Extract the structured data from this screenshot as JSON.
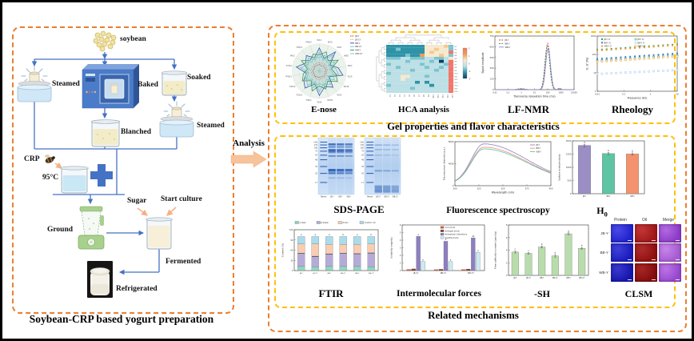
{
  "left_panel": {
    "title": "Soybean-CRP based yogurt preparation",
    "labels": {
      "soybean": "soybean",
      "steamed_left": "Steamed",
      "baked": "Baked",
      "soaked": "Soaked",
      "steamed_right": "Steamed",
      "blanched": "Blanched",
      "crp": "CRP",
      "temperature": "95°C",
      "ground": "Ground",
      "sugar": "Sugar",
      "start_culture": "Start culture",
      "fermented": "Fermented",
      "refrigerated": "Refrigerated"
    }
  },
  "analysis_arrow_label": "Analysis",
  "right_panel": {
    "top_box_title": "Gel properties and flavor characteristics",
    "bottom_box_title": "Related mechanisms",
    "panel_titles": {
      "enose": "E-nose",
      "hca": "HCA analysis",
      "lfnmr": "LF-NMR",
      "rheology": "Rheology",
      "sds": "SDS-PAGE",
      "fluorescence": "Fluorescence spectroscopy",
      "h0_main": "H",
      "h0_sub": "0",
      "ftir": "FTIR",
      "forces": "Intermolecular forces",
      "sh": "-SH",
      "clsm": "CLSM"
    }
  },
  "colors": {
    "orange_dash": "#ED7D31",
    "yellow_dash": "#FFC000",
    "flow_arrow": "#4472C4",
    "analysis_arrow": "#F6C39B"
  },
  "chart_data": [
    {
      "id": "enose",
      "type": "radar",
      "title": "E-nose",
      "sensors": [
        "W1C",
        "W5S",
        "W3C",
        "W6S",
        "W5C",
        "W1S",
        "W1W",
        "W2S",
        "W2W",
        "W3S",
        "T30/1",
        "P10/1",
        "P10/2",
        "P40/1",
        "T70/2",
        "PA/2",
        "P30/1",
        "P40/2"
      ],
      "series": [
        {
          "name": "JB-Y",
          "color": "#D93030",
          "dash": true,
          "values": [
            0.25,
            0.2,
            0.24,
            0.22,
            0.26,
            0.21,
            0.23,
            0.25,
            0.2,
            0.24,
            0.22,
            0.25,
            0.21,
            0.24,
            0.23,
            0.2,
            0.25,
            0.22
          ]
        },
        {
          "name": "JB-CY",
          "color": "#F08E8E",
          "dash": true,
          "values": [
            0.3,
            0.28,
            0.33,
            0.29,
            0.31,
            0.27,
            0.32,
            0.3,
            0.28,
            0.33,
            0.3,
            0.27,
            0.31,
            0.29,
            0.32,
            0.28,
            0.3,
            0.31
          ]
        },
        {
          "name": "BB-Y",
          "color": "#1F4E9C",
          "values": [
            0.85,
            0.5,
            0.92,
            0.45,
            0.7,
            0.88,
            0.42,
            0.78,
            0.6,
            0.9,
            0.5,
            0.82,
            0.66,
            0.48,
            0.86,
            0.58,
            0.74,
            0.52
          ]
        },
        {
          "name": "BB-CY",
          "color": "#7AB3E0",
          "values": [
            0.7,
            0.42,
            0.78,
            0.38,
            0.6,
            0.72,
            0.36,
            0.65,
            0.5,
            0.75,
            0.42,
            0.68,
            0.55,
            0.4,
            0.7,
            0.48,
            0.62,
            0.44
          ]
        },
        {
          "name": "WB-Y",
          "color": "#2E8B57",
          "values": [
            0.6,
            0.75,
            0.5,
            0.8,
            0.45,
            0.62,
            0.77,
            0.48,
            0.7,
            0.55,
            0.78,
            0.46,
            0.72,
            0.6,
            0.44,
            0.76,
            0.52,
            0.66
          ]
        },
        {
          "name": "WB-CY",
          "color": "#66CDAA",
          "values": [
            0.5,
            0.62,
            0.42,
            0.66,
            0.38,
            0.52,
            0.64,
            0.4,
            0.58,
            0.46,
            0.65,
            0.39,
            0.6,
            0.5,
            0.37,
            0.63,
            0.43,
            0.55
          ]
        }
      ]
    },
    {
      "id": "hca",
      "type": "heatmap",
      "title": "HCA analysis",
      "palette": [
        "#123A63",
        "#2E93A6",
        "#7CC4CF",
        "#BCE0E6",
        "#F6E9CF",
        "#F6C98E",
        "#F09C4E",
        "#F4756A"
      ],
      "rows": [
        "11111111444452",
        "11211111445442",
        "11111111454447",
        "11112116444542",
        "22233222332234",
        "33332333323037",
        "23333332333327",
        "33233333233237",
        "33333233332337",
        "23333333333337",
        "33344333233337",
        "33343333333337",
        "33333313133337",
        "23333333313337",
        "33333233333337",
        "33333333333337"
      ],
      "col_labels": [
        "C1",
        "C2",
        "C3",
        "C4",
        "C5",
        "C6",
        "C7",
        "C8",
        "C9",
        "C10",
        "C11",
        "C12",
        "C13",
        "C14"
      ],
      "row_labels": [
        "R1",
        "R2",
        "R3",
        "R4",
        "R5",
        "R6",
        "R7",
        "R8",
        "R9",
        "R10",
        "R11",
        "R12",
        "R13",
        "R14",
        "R15",
        "R16"
      ],
      "colorbar": {
        "colors": [
          "#F4756A",
          "#F09C4E",
          "#F6E9CF",
          "#BCE0E6",
          "#2E93A6",
          "#123A63"
        ],
        "ticks": [
          "2",
          "1",
          "0",
          "-1",
          "-2"
        ]
      }
    },
    {
      "id": "lfnmr",
      "type": "nmr",
      "title": "LF-NMR",
      "xlabel": "Transverse relaxation time (ms)",
      "ylabel": "Signal amplitude",
      "xticks": [
        "0.01",
        "0.1",
        "1",
        "10",
        "100",
        "1000",
        "10000"
      ],
      "ylim": [
        0,
        750
      ],
      "yticks": [
        0,
        150,
        300,
        450,
        600,
        750
      ],
      "series": [
        {
          "name": "JB-Y",
          "color": "#E04040",
          "dash": true,
          "peaks": [
            [
              2.0,
              0.18,
              650
            ],
            [
              0.0,
              0.25,
              14
            ],
            [
              2.9,
              0.1,
              20
            ]
          ]
        },
        {
          "name": "BB-Y",
          "color": "#2E8B57",
          "dash": true,
          "peaks": [
            [
              1.97,
              0.18,
              615
            ],
            [
              0.0,
              0.25,
              12
            ],
            [
              2.9,
              0.1,
              16
            ]
          ]
        },
        {
          "name": "WB-Y",
          "color": "#9080C8",
          "peaks": [
            [
              2.03,
              0.18,
              580
            ],
            [
              0.0,
              0.25,
              10
            ],
            [
              2.9,
              0.1,
              12
            ]
          ]
        }
      ]
    },
    {
      "id": "rheology",
      "type": "logscatter",
      "title": "Rheology",
      "xlabel": "Frequency (Hz)",
      "ylabel": "G′, G″ (Pa)",
      "xticks": [
        "0.01",
        "0.1",
        "1",
        "10"
      ],
      "yticks": [
        "1",
        "10",
        "100",
        "1000"
      ],
      "series": [
        {
          "name": "JB-Y G′",
          "color": "#2E9E4F",
          "open": false,
          "A": 280,
          "n": 0.1
        },
        {
          "name": "BB-Y G′",
          "color": "#3A7BD5",
          "open": false,
          "A": 90,
          "n": 0.1
        },
        {
          "name": "WB-Y G′",
          "color": "#F0A030",
          "open": false,
          "A": 255,
          "n": 0.1
        },
        {
          "name": "JB-Y G″",
          "color": "#2E9E4F",
          "open": true,
          "A": 70,
          "n": 0.1
        },
        {
          "name": "BB-Y G″",
          "color": "#9EC9F0",
          "open": true,
          "A": 12,
          "n": 0.07
        },
        {
          "name": "WB-Y G″",
          "color": "#F0A030",
          "open": true,
          "A": 62,
          "n": 0.1
        }
      ]
    },
    {
      "id": "sds",
      "type": "gel",
      "title": "SDS-PAGE",
      "mw_labels": [
        "kDa",
        "135",
        "100",
        "75",
        "63",
        "48",
        "35",
        "25",
        "17"
      ],
      "marker_bands": [
        0.07,
        0.12,
        0.17,
        0.23,
        0.3,
        0.38,
        0.5,
        0.62,
        0.78
      ],
      "gels": [
        {
          "lane_labels": [
            "Marker",
            "JB-Y",
            "BB-Y",
            "WB-Y"
          ],
          "sample_bands": [
            [
              0.1,
              2.5,
              0.85
            ],
            [
              0.15,
              1.8,
              0.7
            ],
            [
              0.2,
              3.5,
              0.9
            ],
            [
              0.25,
              1.6,
              0.6
            ],
            [
              0.31,
              1.8,
              0.65
            ],
            [
              0.55,
              3.5,
              0.9
            ],
            [
              0.61,
              2.2,
              0.75
            ],
            [
              0.7,
              1.2,
              0.4
            ]
          ]
        },
        {
          "lane_labels": [
            "Marker",
            "JB-CY",
            "BB-CY",
            "WB-CY"
          ],
          "sample_bands": [
            [
              0.12,
              1.4,
              0.45
            ],
            [
              0.2,
              1.4,
              0.4
            ],
            [
              0.3,
              1.2,
              0.35
            ],
            [
              0.57,
              1.8,
              0.5
            ],
            [
              0.84,
              5,
              0.55
            ],
            [
              0.91,
              4,
              0.6
            ]
          ]
        }
      ]
    },
    {
      "id": "fluorescence",
      "type": "peakline",
      "title": "Fluorescence spectroscopy",
      "xlabel": "Wavelength (nm)",
      "ylabel": "Fluorescence intensity (a.u.)",
      "xticks": [
        "300",
        "325",
        "350",
        "375",
        "400"
      ],
      "yticks": [
        "0",
        "4000",
        "8000"
      ],
      "peak": {
        "pos": 0.3,
        "sigma_left": 0.13,
        "sigma_right": 0.45,
        "baseline": 0.05
      },
      "series": [
        {
          "name": "JB-Y",
          "color": "#8F7FC9",
          "height": 0.95
        },
        {
          "name": "BB-Y",
          "color": "#EA8F6A",
          "height": 0.87
        },
        {
          "name": "WB-Y",
          "color": "#5FBFAE",
          "height": 0.83
        }
      ]
    },
    {
      "id": "h0",
      "type": "bar",
      "title": "H0",
      "ylabel": "Surface hydrophobicity",
      "categories": [
        "JB-Y",
        "BB-Y",
        "WB-Y"
      ],
      "values": [
        1830,
        1520,
        1505
      ],
      "errors": [
        45,
        40,
        40
      ],
      "letters": [
        "a",
        "b",
        "b"
      ],
      "colors": [
        "#9B8EC4",
        "#5FC4A4",
        "#F4926F"
      ],
      "ylim": [
        0,
        2000
      ],
      "yticks": [
        0,
        500,
        1000,
        1500,
        2000
      ]
    },
    {
      "id": "ftir",
      "type": "stackedbar",
      "title": "FTIR",
      "ylabel": "Content (%)",
      "categories": [
        "JB-Y",
        "JB-CY",
        "BB-Y",
        "BB-CY",
        "WB-Y",
        "WB-CY"
      ],
      "legend": [
        "α-helix",
        "β-sheet",
        "β-turn",
        "random coil"
      ],
      "colors": [
        "#8FD6C0",
        "#B6ABD8",
        "#F8CDB2",
        "#AADCEC"
      ],
      "values": [
        [
          12,
          38,
          28,
          22
        ],
        [
          11,
          30,
          37,
          22
        ],
        [
          12,
          36,
          29,
          23
        ],
        [
          12,
          38,
          27,
          23
        ],
        [
          12,
          37,
          28,
          23
        ],
        [
          11,
          40,
          27,
          22
        ]
      ],
      "letters": [
        "a",
        "a",
        "a",
        "b",
        "a",
        "b"
      ],
      "ylim": [
        0,
        120
      ],
      "yticks": [
        0,
        30,
        60,
        90,
        120
      ]
    },
    {
      "id": "forces",
      "type": "groupedbar",
      "title": "Intermolecular forces",
      "ylabel": "Solubility (mg/mL)",
      "categories": [
        "JB-CY",
        "BB-CY",
        "WB-CY"
      ],
      "series": [
        {
          "name": "Ionic bonds",
          "color": "#E2593B",
          "values": [
            0.15,
            0.12,
            0.14
          ]
        },
        {
          "name": "Hydrogen bonds",
          "color": "#8A3B2A",
          "values": [
            0.22,
            0.17,
            0.2
          ]
        },
        {
          "name": "Hydrophobic interactions",
          "color": "#8D7FC0",
          "values": [
            4.5,
            3.85,
            4.3
          ],
          "letters": [
            "a",
            "b",
            "ab"
          ]
        },
        {
          "name": "Disulfide bonds",
          "color": "#CDEAF2",
          "values": [
            1.2,
            1.18,
            2.4
          ],
          "letters": [
            "b",
            "b",
            "a"
          ]
        }
      ],
      "ylim": [
        0,
        6
      ],
      "yticks": [
        0,
        1,
        2,
        3,
        4,
        5,
        6
      ]
    },
    {
      "id": "sh",
      "type": "bar",
      "title": "-SH",
      "ylabel": "Free sulfhydryl content (μmol/g)",
      "categories": [
        "JB-Y",
        "JB-CY",
        "BB-Y",
        "BB-CY",
        "WB-Y",
        "WB-CY"
      ],
      "values": [
        3.7,
        3.5,
        4.5,
        3.1,
        6.6,
        4.3
      ],
      "errors": [
        0.15,
        0.12,
        0.15,
        0.2,
        0.15,
        0.12
      ],
      "letters": [
        "c",
        "c",
        "b",
        "d",
        "a",
        "b"
      ],
      "color": "#B9DCAD",
      "ylim": [
        0,
        8
      ],
      "yticks": [
        0,
        2,
        4,
        6,
        8
      ]
    },
    {
      "id": "clsm",
      "type": "clsm",
      "title": "CLSM",
      "col_labels": [
        "Protein",
        "Oil",
        "Merge"
      ],
      "rows": [
        {
          "label": "JB-Y",
          "cells": [
            [
              "#2222CC",
              "#4A4AE8"
            ],
            [
              "#A01818",
              "#C23636"
            ],
            [
              "#8C3BC9",
              "#B36AE0"
            ]
          ]
        },
        {
          "label": "BB-Y",
          "cells": [
            [
              "#1B1BBD",
              "#4040D8"
            ],
            [
              "#8F1010",
              "#B02C2C"
            ],
            [
              "#A55AD2",
              "#C685E6"
            ]
          ]
        },
        {
          "label": "WB-Y",
          "cells": [
            [
              "#1616AE",
              "#3838CC"
            ],
            [
              "#840C0C",
              "#A62626"
            ],
            [
              "#9747CF",
              "#BB74E2"
            ]
          ]
        }
      ]
    }
  ]
}
